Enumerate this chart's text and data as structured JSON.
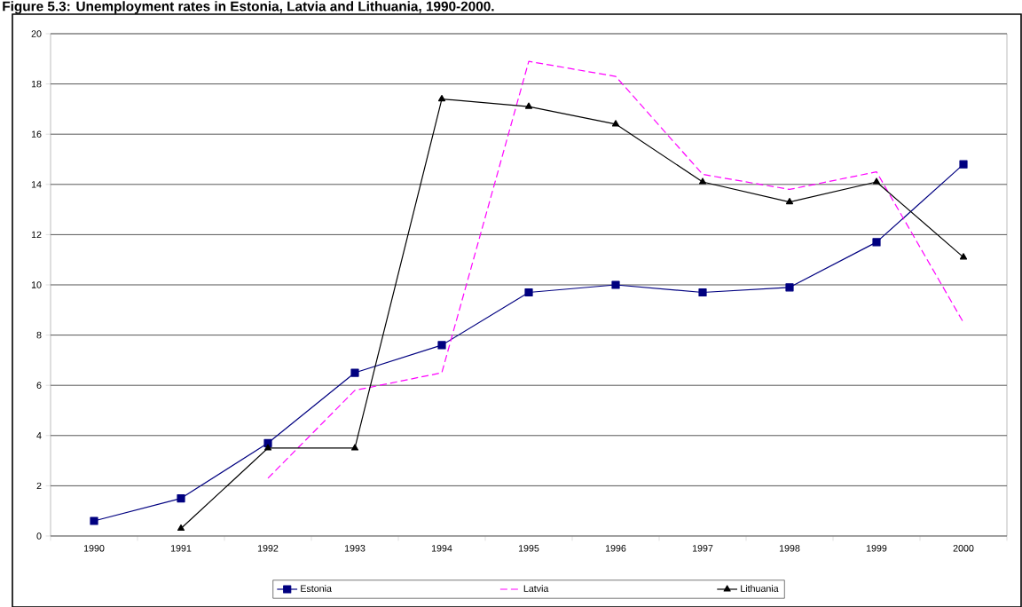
{
  "chart_data": {
    "type": "line",
    "title": "Figure 5.3: Unemployment rates in Estonia, Latvia and Lithuania, 1990-2000.",
    "categories": [
      "1990",
      "1991",
      "1992",
      "1993",
      "1994",
      "1995",
      "1996",
      "1997",
      "1998",
      "1999",
      "2000"
    ],
    "series": [
      {
        "name": "Estonia",
        "color": "#000080",
        "marker": "square",
        "line_style": "solid",
        "values": [
          0.6,
          1.5,
          3.7,
          6.5,
          7.6,
          9.7,
          10.0,
          9.7,
          9.9,
          11.7,
          14.8
        ]
      },
      {
        "name": "Latvia",
        "color": "#ff00ff",
        "marker": "none",
        "line_style": "dashed",
        "values": [
          null,
          null,
          2.3,
          5.8,
          6.5,
          18.9,
          18.3,
          14.4,
          13.8,
          14.5,
          8.5
        ]
      },
      {
        "name": "Lithuania",
        "color": "#000000",
        "marker": "triangle",
        "line_style": "solid",
        "values": [
          null,
          0.3,
          3.5,
          3.5,
          17.4,
          17.1,
          16.4,
          14.1,
          13.3,
          14.1,
          11.1
        ]
      }
    ],
    "ylim": [
      0,
      20
    ],
    "yticks": [
      0,
      2,
      4,
      6,
      8,
      10,
      12,
      14,
      16,
      18,
      20
    ],
    "grid": "y",
    "legend": "bottom"
  }
}
